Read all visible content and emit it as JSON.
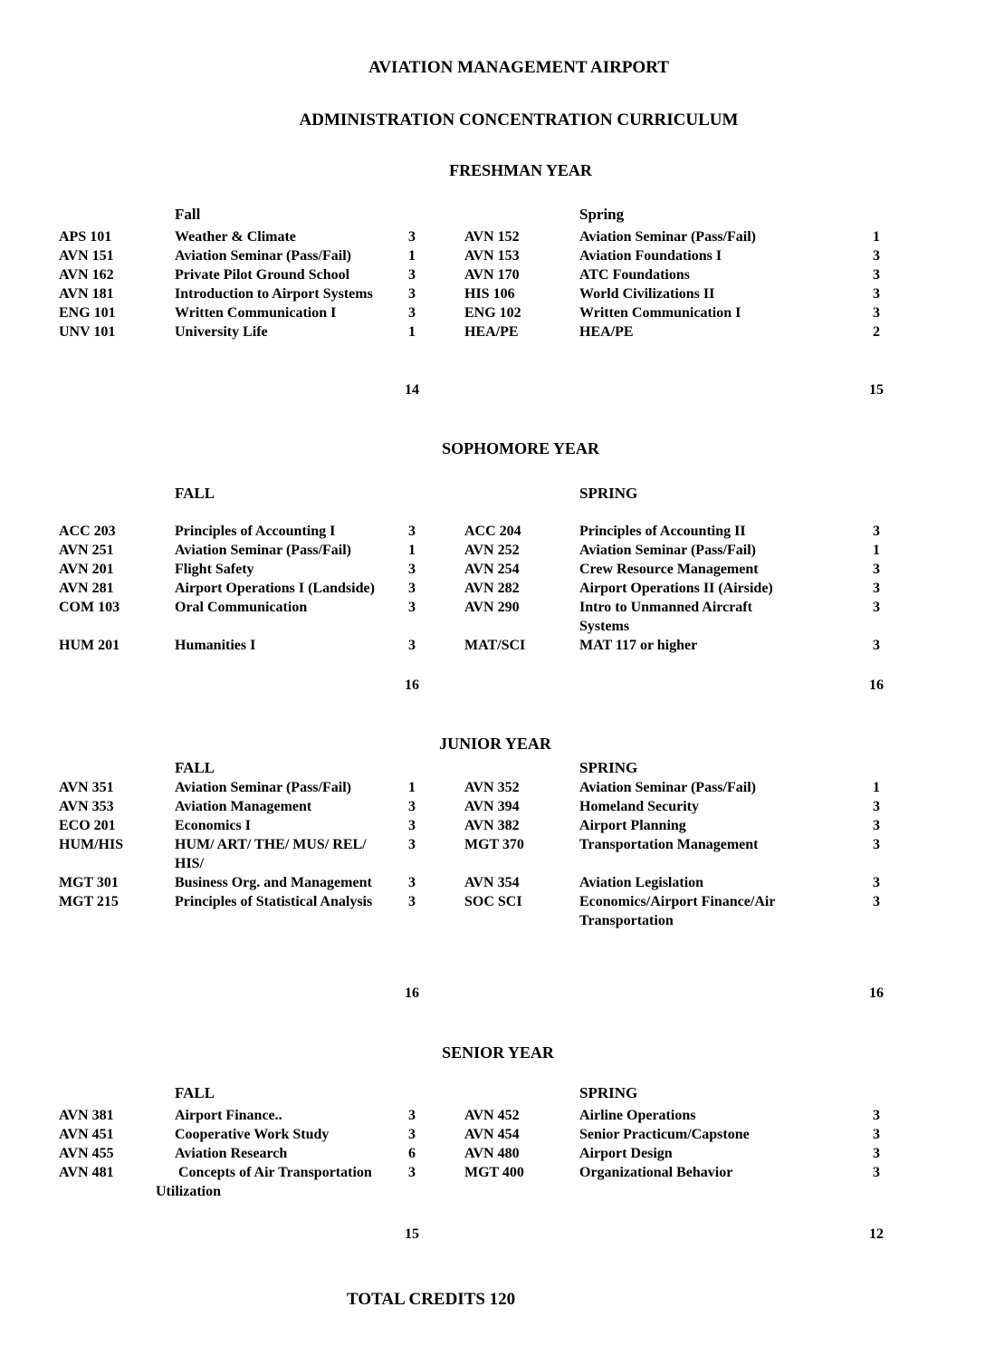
{
  "document": {
    "title_line1": "AVIATION MANAGEMENT AIRPORT",
    "title_line2": "ADMINISTRATION CONCENTRATION CURRICULUM",
    "total_credits_label": "TOTAL CREDITS 120",
    "years": [
      {
        "title": "FRESHMAN YEAR",
        "fall_label": "Fall",
        "spring_label": "Spring",
        "fall_total": "14",
        "spring_total": "15",
        "rows": [
          {
            "fall": {
              "code": "APS 101",
              "title": "Weather & Climate",
              "credits": "3"
            },
            "spring": {
              "code": "AVN 152",
              "title": "Aviation Seminar (Pass/Fail)",
              "credits": "1"
            }
          },
          {
            "fall": {
              "code": "AVN 151",
              "title": "Aviation Seminar (Pass/Fail)",
              "credits": "1"
            },
            "spring": {
              "code": "AVN 153",
              "title": "Aviation Foundations I",
              "credits": "3"
            }
          },
          {
            "fall": {
              "code": "AVN 162",
              "title": "Private Pilot Ground School",
              "credits": "3"
            },
            "spring": {
              "code": "AVN 170",
              "title": "ATC Foundations",
              "credits": "3"
            }
          },
          {
            "fall": {
              "code": "AVN 181",
              "title": "Introduction to Airport Systems",
              "credits": "3"
            },
            "spring": {
              "code": "HIS 106",
              "title": "World Civilizations II",
              "credits": "3"
            }
          },
          {
            "fall": {
              "code": "ENG 101",
              "title": "Written Communication I",
              "credits": "3"
            },
            "spring": {
              "code": "ENG 102",
              "title": "Written Communication I",
              "credits": "3"
            }
          },
          {
            "fall": {
              "code": "UNV 101",
              "title": "University Life",
              "credits": "1"
            },
            "spring": {
              "code": "HEA/PE",
              "title": "HEA/PE",
              "credits": "2"
            }
          }
        ]
      },
      {
        "title": "SOPHOMORE YEAR",
        "fall_label": "FALL",
        "spring_label": "SPRING",
        "fall_total": "16",
        "spring_total": "16",
        "rows": [
          {
            "fall": {
              "code": "ACC 203",
              "title": "Principles of Accounting I",
              "credits": "3"
            },
            "spring": {
              "code": "ACC 204",
              "title": "Principles of Accounting II",
              "credits": "3"
            }
          },
          {
            "fall": {
              "code": "AVN 251",
              "title": "Aviation Seminar (Pass/Fail)",
              "credits": "1"
            },
            "spring": {
              "code": "AVN 252",
              "title": "Aviation Seminar (Pass/Fail)",
              "credits": "1"
            }
          },
          {
            "fall": {
              "code": "AVN 201",
              "title": "Flight Safety",
              "credits": "3"
            },
            "spring": {
              "code": "AVN 254",
              "title": "Crew Resource Management",
              "credits": "3"
            }
          },
          {
            "fall": {
              "code": "AVN 281",
              "title": "Airport Operations I (Landside)",
              "credits": "3"
            },
            "spring": {
              "code": "AVN 282",
              "title": "Airport Operations II (Airside)",
              "credits": "3"
            }
          },
          {
            "fall": {
              "code": "COM 103",
              "title": "Oral Communication",
              "credits": "3"
            },
            "spring": {
              "code": "AVN 290",
              "title": "Intro to Unmanned Aircraft Systems",
              "credits": "3"
            }
          },
          {
            "fall": {
              "code": "HUM 201",
              "title": "Humanities I",
              "credits": "3"
            },
            "spring": {
              "code": "MAT/SCI",
              "title": "MAT 117 or higher",
              "credits": "3"
            }
          }
        ]
      },
      {
        "title": "JUNIOR YEAR",
        "fall_label": "FALL",
        "spring_label": "SPRING",
        "fall_total": "16",
        "spring_total": "16",
        "rows": [
          {
            "fall": {
              "code": "AVN 351",
              "title": "Aviation Seminar (Pass/Fail)",
              "credits": "1"
            },
            "spring": {
              "code": "AVN 352",
              "title": "Aviation Seminar (Pass/Fail)",
              "credits": "1"
            }
          },
          {
            "fall": {
              "code": "AVN 353",
              "title": "Aviation Management",
              "credits": "3"
            },
            "spring": {
              "code": "AVN 394",
              "title": "Homeland Security",
              "credits": "3"
            }
          },
          {
            "fall": {
              "code": "ECO 201",
              "title": "Economics I",
              "credits": "3"
            },
            "spring": {
              "code": "AVN 382",
              "title": "Airport Planning",
              "credits": "3"
            }
          },
          {
            "fall": {
              "code": "HUM/HIS",
              "title": "HUM/ ART/ THE/ MUS/ REL/ HIS/",
              "credits": "3"
            },
            "spring": {
              "code": "MGT 370",
              "title": "Transportation Management",
              "credits": "3"
            }
          },
          {
            "fall": {
              "code": "MGT 301",
              "title": "Business Org. and Management",
              "credits": "3"
            },
            "spring": {
              "code": "AVN 354",
              "title": "Aviation Legislation",
              "credits": "3"
            }
          },
          {
            "fall": {
              "code": "MGT 215",
              "title": "Principles of Statistical Analysis",
              "credits": "3"
            },
            "spring": {
              "code": "SOC SCI",
              "title": "Economics/Airport Finance/Air Transportation",
              "credits": "3"
            }
          }
        ]
      },
      {
        "title": "SENIOR YEAR",
        "fall_label": "FALL",
        "spring_label": "SPRING",
        "fall_total": "15",
        "spring_total": "12",
        "rows": [
          {
            "fall": {
              "code": "AVN 381",
              "title": "Airport Finance..",
              "credits": "3"
            },
            "spring": {
              "code": "AVN 452",
              "title": "Airline Operations",
              "credits": "3"
            }
          },
          {
            "fall": {
              "code": "AVN 451",
              "title": "Cooperative Work Study",
              "credits": "3"
            },
            "spring": {
              "code": "AVN 454",
              "title": "Senior Practicum/Capstone",
              "credits": "3"
            }
          },
          {
            "fall": {
              "code": "AVN 455",
              "title": "Aviation Research",
              "credits": "6"
            },
            "spring": {
              "code": "AVN 480",
              "title": "Airport Design",
              "credits": "3"
            }
          },
          {
            "fall": {
              "code": "AVN 481",
              "title": "Concepts of Air Transportation Utilization",
              "credits": "3"
            },
            "spring": {
              "code": "MGT 400",
              "title": "Organizational Behavior",
              "credits": "3"
            }
          }
        ]
      }
    ]
  }
}
